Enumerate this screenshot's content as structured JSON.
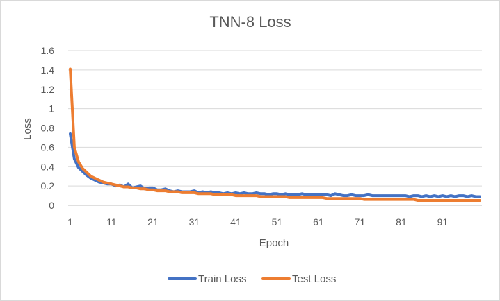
{
  "chart_data": {
    "type": "line",
    "title": "TNN-8 Loss",
    "xlabel": "Epoch",
    "ylabel": "Loss",
    "ylim": [
      0,
      1.6
    ],
    "yticks": [
      "0",
      "0.2",
      "0.4",
      "0.6",
      "0.8",
      "1",
      "1.2",
      "1.4",
      "1.6"
    ],
    "xticks": [
      "1",
      "11",
      "21",
      "31",
      "41",
      "51",
      "61",
      "71",
      "81",
      "91"
    ],
    "grid": true,
    "legend_position": "bottom",
    "colors": {
      "train": "#4472c4",
      "test": "#ed7d31",
      "grid": "#d9d9d9"
    },
    "x_count": 100,
    "series": [
      {
        "name": "Train Loss",
        "values": [
          0.74,
          0.48,
          0.39,
          0.35,
          0.31,
          0.28,
          0.26,
          0.24,
          0.23,
          0.22,
          0.22,
          0.2,
          0.21,
          0.19,
          0.22,
          0.18,
          0.19,
          0.2,
          0.17,
          0.18,
          0.18,
          0.16,
          0.16,
          0.17,
          0.15,
          0.14,
          0.15,
          0.14,
          0.14,
          0.14,
          0.15,
          0.13,
          0.14,
          0.13,
          0.14,
          0.13,
          0.13,
          0.12,
          0.13,
          0.12,
          0.13,
          0.12,
          0.13,
          0.12,
          0.12,
          0.13,
          0.12,
          0.12,
          0.11,
          0.12,
          0.12,
          0.11,
          0.12,
          0.11,
          0.11,
          0.11,
          0.12,
          0.11,
          0.11,
          0.11,
          0.11,
          0.11,
          0.11,
          0.1,
          0.12,
          0.11,
          0.1,
          0.1,
          0.11,
          0.1,
          0.1,
          0.1,
          0.11,
          0.1,
          0.1,
          0.1,
          0.1,
          0.1,
          0.1,
          0.1,
          0.1,
          0.1,
          0.09,
          0.1,
          0.1,
          0.09,
          0.1,
          0.09,
          0.1,
          0.09,
          0.1,
          0.09,
          0.1,
          0.09,
          0.1,
          0.1,
          0.09,
          0.1,
          0.09,
          0.09
        ]
      },
      {
        "name": "Test Loss",
        "values": [
          1.41,
          0.6,
          0.45,
          0.38,
          0.34,
          0.3,
          0.28,
          0.26,
          0.24,
          0.23,
          0.22,
          0.21,
          0.2,
          0.19,
          0.19,
          0.18,
          0.18,
          0.17,
          0.17,
          0.16,
          0.16,
          0.15,
          0.15,
          0.15,
          0.14,
          0.14,
          0.14,
          0.13,
          0.13,
          0.13,
          0.13,
          0.12,
          0.12,
          0.12,
          0.12,
          0.11,
          0.11,
          0.11,
          0.11,
          0.11,
          0.1,
          0.1,
          0.1,
          0.1,
          0.1,
          0.1,
          0.09,
          0.09,
          0.09,
          0.09,
          0.09,
          0.09,
          0.09,
          0.08,
          0.08,
          0.08,
          0.08,
          0.08,
          0.08,
          0.08,
          0.08,
          0.08,
          0.07,
          0.07,
          0.07,
          0.07,
          0.07,
          0.07,
          0.07,
          0.07,
          0.07,
          0.06,
          0.06,
          0.06,
          0.06,
          0.06,
          0.06,
          0.06,
          0.06,
          0.06,
          0.06,
          0.06,
          0.06,
          0.06,
          0.05,
          0.05,
          0.05,
          0.05,
          0.05,
          0.05,
          0.05,
          0.05,
          0.05,
          0.05,
          0.05,
          0.05,
          0.05,
          0.05,
          0.05,
          0.05
        ]
      }
    ]
  }
}
